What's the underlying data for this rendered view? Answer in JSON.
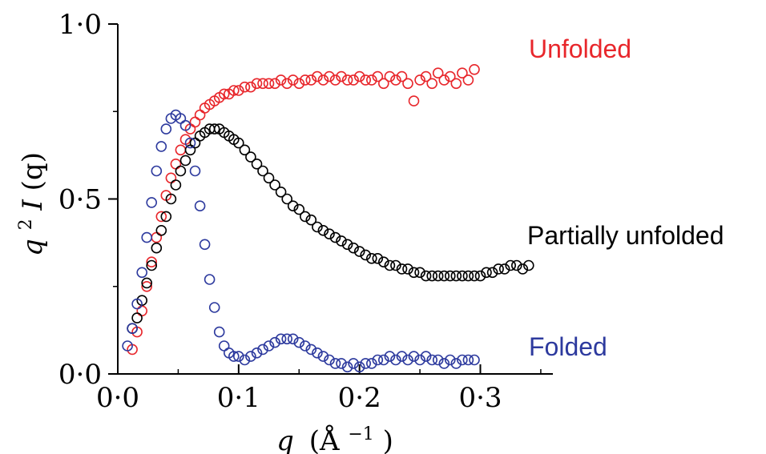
{
  "chart_data": {
    "type": "scatter",
    "title": "",
    "xlabel_var": "q",
    "xlabel_unit": "(Å",
    "xlabel_exp": "−1",
    "xlabel_close": ")",
    "ylabel_var": "q",
    "ylabel_exp": "2",
    "ylabel_func": "I",
    "ylabel_arg": "(q)",
    "xlim": [
      0.0,
      0.36
    ],
    "ylim": [
      0.0,
      1.0
    ],
    "x_ticks": [
      0.0,
      0.1,
      0.2,
      0.3
    ],
    "x_tick_labels": [
      "0·0",
      "0·1",
      "0·2",
      "0·3"
    ],
    "y_ticks": [
      0.0,
      0.5,
      1.0
    ],
    "y_tick_labels": [
      "0·0",
      "0·5",
      "1·0"
    ],
    "grid": false,
    "legend": "none",
    "marker": "open-circle",
    "series": [
      {
        "name": "Unfolded",
        "color": "#e8262b",
        "x": [
          0.012,
          0.016,
          0.02,
          0.024,
          0.028,
          0.032,
          0.036,
          0.04,
          0.044,
          0.048,
          0.052,
          0.056,
          0.06,
          0.064,
          0.068,
          0.072,
          0.076,
          0.08,
          0.084,
          0.088,
          0.092,
          0.096,
          0.1,
          0.105,
          0.11,
          0.115,
          0.12,
          0.125,
          0.13,
          0.135,
          0.14,
          0.145,
          0.15,
          0.155,
          0.16,
          0.165,
          0.17,
          0.175,
          0.18,
          0.185,
          0.19,
          0.195,
          0.2,
          0.205,
          0.21,
          0.215,
          0.22,
          0.225,
          0.23,
          0.235,
          0.24,
          0.245,
          0.25,
          0.255,
          0.26,
          0.265,
          0.27,
          0.275,
          0.28,
          0.285,
          0.29,
          0.295
        ],
        "y": [
          0.07,
          0.12,
          0.18,
          0.25,
          0.32,
          0.39,
          0.45,
          0.51,
          0.56,
          0.6,
          0.64,
          0.67,
          0.7,
          0.72,
          0.74,
          0.76,
          0.77,
          0.78,
          0.79,
          0.8,
          0.8,
          0.81,
          0.81,
          0.82,
          0.82,
          0.83,
          0.83,
          0.83,
          0.83,
          0.84,
          0.83,
          0.84,
          0.83,
          0.84,
          0.84,
          0.85,
          0.84,
          0.85,
          0.84,
          0.85,
          0.84,
          0.84,
          0.85,
          0.84,
          0.84,
          0.85,
          0.83,
          0.85,
          0.84,
          0.85,
          0.83,
          0.78,
          0.84,
          0.85,
          0.83,
          0.86,
          0.84,
          0.85,
          0.83,
          0.86,
          0.84,
          0.87
        ]
      },
      {
        "name": "Partially unfolded",
        "color": "#000000",
        "x": [
          0.012,
          0.016,
          0.02,
          0.024,
          0.028,
          0.032,
          0.036,
          0.04,
          0.044,
          0.048,
          0.052,
          0.056,
          0.06,
          0.064,
          0.068,
          0.072,
          0.076,
          0.08,
          0.084,
          0.088,
          0.092,
          0.096,
          0.1,
          0.105,
          0.11,
          0.115,
          0.12,
          0.125,
          0.13,
          0.135,
          0.14,
          0.145,
          0.15,
          0.155,
          0.16,
          0.165,
          0.17,
          0.175,
          0.18,
          0.185,
          0.19,
          0.195,
          0.2,
          0.205,
          0.21,
          0.215,
          0.22,
          0.225,
          0.23,
          0.235,
          0.24,
          0.245,
          0.25,
          0.255,
          0.26,
          0.265,
          0.27,
          0.275,
          0.28,
          0.285,
          0.29,
          0.295,
          0.3,
          0.305,
          0.31,
          0.315,
          0.32,
          0.325,
          0.33,
          0.335,
          0.34
        ],
        "y": [
          0.13,
          0.16,
          0.21,
          0.26,
          0.31,
          0.36,
          0.41,
          0.45,
          0.5,
          0.54,
          0.58,
          0.61,
          0.64,
          0.66,
          0.68,
          0.69,
          0.7,
          0.7,
          0.7,
          0.69,
          0.68,
          0.67,
          0.66,
          0.64,
          0.62,
          0.6,
          0.58,
          0.56,
          0.54,
          0.52,
          0.5,
          0.48,
          0.47,
          0.45,
          0.44,
          0.42,
          0.41,
          0.4,
          0.39,
          0.38,
          0.37,
          0.36,
          0.35,
          0.34,
          0.33,
          0.33,
          0.32,
          0.31,
          0.31,
          0.3,
          0.3,
          0.29,
          0.29,
          0.28,
          0.28,
          0.28,
          0.28,
          0.28,
          0.28,
          0.28,
          0.28,
          0.28,
          0.28,
          0.29,
          0.29,
          0.3,
          0.3,
          0.31,
          0.31,
          0.3,
          0.31
        ]
      },
      {
        "name": "Folded",
        "color": "#2d3a9e",
        "x": [
          0.008,
          0.012,
          0.016,
          0.02,
          0.024,
          0.028,
          0.032,
          0.036,
          0.04,
          0.044,
          0.048,
          0.052,
          0.056,
          0.06,
          0.064,
          0.068,
          0.072,
          0.076,
          0.08,
          0.084,
          0.088,
          0.092,
          0.096,
          0.1,
          0.105,
          0.11,
          0.115,
          0.12,
          0.125,
          0.13,
          0.135,
          0.14,
          0.145,
          0.15,
          0.155,
          0.16,
          0.165,
          0.17,
          0.175,
          0.18,
          0.185,
          0.19,
          0.195,
          0.2,
          0.205,
          0.21,
          0.215,
          0.22,
          0.225,
          0.23,
          0.235,
          0.24,
          0.245,
          0.25,
          0.255,
          0.26,
          0.265,
          0.27,
          0.275,
          0.28,
          0.285,
          0.29,
          0.295
        ],
        "y": [
          0.08,
          0.13,
          0.2,
          0.29,
          0.39,
          0.49,
          0.58,
          0.65,
          0.7,
          0.73,
          0.74,
          0.73,
          0.71,
          0.66,
          0.58,
          0.48,
          0.37,
          0.27,
          0.19,
          0.12,
          0.08,
          0.06,
          0.05,
          0.05,
          0.04,
          0.05,
          0.06,
          0.07,
          0.08,
          0.09,
          0.1,
          0.1,
          0.1,
          0.09,
          0.08,
          0.07,
          0.06,
          0.05,
          0.04,
          0.03,
          0.03,
          0.02,
          0.03,
          0.02,
          0.03,
          0.03,
          0.04,
          0.04,
          0.05,
          0.04,
          0.05,
          0.04,
          0.05,
          0.04,
          0.05,
          0.04,
          0.04,
          0.03,
          0.04,
          0.03,
          0.04,
          0.04,
          0.04
        ]
      }
    ]
  }
}
